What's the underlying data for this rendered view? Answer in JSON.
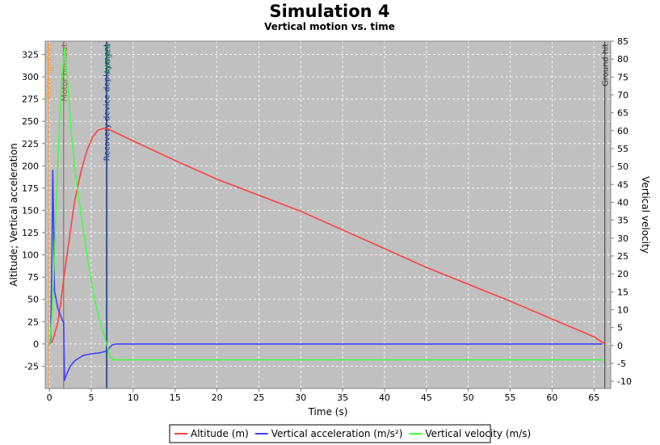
{
  "chart_data": {
    "type": "line",
    "title": "Simulation 4",
    "subtitle": "Vertical motion vs. time",
    "xlabel": "Time (s)",
    "ylabel_left": "Altitude; Vertical acceleration",
    "ylabel_right": "Vertical velocity",
    "xlim": [
      -0.5,
      67
    ],
    "ylim_left": [
      -50,
      340
    ],
    "ylim_right": [
      -12,
      85
    ],
    "x_ticks": [
      0,
      5,
      10,
      15,
      20,
      25,
      30,
      35,
      40,
      45,
      50,
      55,
      60,
      65
    ],
    "y_left_ticks": [
      -25,
      0,
      25,
      50,
      75,
      100,
      125,
      150,
      175,
      200,
      225,
      250,
      275,
      300,
      325
    ],
    "y_right_ticks": [
      -10,
      -5,
      0,
      5,
      10,
      15,
      20,
      25,
      30,
      35,
      40,
      45,
      50,
      55,
      60,
      65,
      70,
      75,
      80,
      85
    ],
    "grid": true,
    "legend_position": "bottom",
    "background_color": "#c0c0c0",
    "series": [
      {
        "name": "Altitude (m)",
        "color": "#ff4040",
        "axis": "left",
        "x": [
          0,
          0.3,
          0.6,
          1.0,
          1.4,
          1.8,
          2.4,
          3.0,
          3.8,
          4.5,
          5.2,
          5.8,
          6.4,
          6.9,
          8,
          10,
          15,
          20,
          25,
          30,
          35,
          40,
          45,
          50,
          55,
          60,
          65,
          66.3
        ],
        "y": [
          0,
          2,
          10,
          25,
          50,
          80,
          120,
          160,
          195,
          218,
          233,
          240,
          242,
          242,
          237,
          228,
          206,
          185,
          167,
          149,
          128,
          107,
          86,
          67,
          48,
          28,
          8,
          0
        ]
      },
      {
        "name": "Vertical acceleration (m/s²)",
        "color": "#4040ff",
        "axis": "left",
        "x": [
          0,
          0.15,
          0.3,
          0.4,
          0.5,
          0.6,
          0.8,
          1.0,
          1.2,
          1.4,
          1.5,
          1.6,
          1.7,
          1.8,
          2.0,
          2.5,
          3.0,
          3.5,
          4.0,
          5.0,
          6.0,
          6.8,
          7.1,
          7.5,
          8.0,
          9,
          10,
          20,
          30,
          40,
          50,
          60,
          66
        ],
        "y": [
          0,
          5,
          100,
          195,
          140,
          60,
          50,
          40,
          35,
          30,
          28,
          25,
          25,
          -41,
          -35,
          -25,
          -19,
          -16,
          -13,
          -11,
          -10,
          -8,
          -5,
          -1,
          0,
          0,
          0,
          0,
          0,
          0,
          0,
          0,
          0
        ]
      },
      {
        "name": "Vertical velocity (m/s)",
        "color": "#40ff40",
        "axis": "right",
        "x": [
          0,
          0.3,
          0.6,
          0.9,
          1.2,
          1.5,
          1.8,
          2.2,
          2.6,
          3.0,
          3.5,
          4.0,
          4.5,
          5.0,
          5.5,
          6.0,
          6.5,
          6.9,
          7.2,
          7.6,
          8,
          10,
          20,
          30,
          40,
          50,
          60,
          66
        ],
        "y": [
          0,
          8,
          25,
          45,
          62,
          75,
          83,
          73,
          60,
          50,
          41,
          33,
          25,
          18,
          12,
          7,
          3,
          0,
          -3,
          -4,
          -4,
          -4,
          -4,
          -4,
          -4,
          -4,
          -4,
          -4
        ]
      }
    ],
    "events": [
      {
        "label": "Motor ignition",
        "x": -0.1,
        "color": "#ff9933"
      },
      {
        "label": "Motor burnout",
        "x": 1.7,
        "color": "#886644"
      },
      {
        "label": "Recovery device deployment",
        "x": 6.8,
        "color": "#2222aa"
      },
      {
        "label": "Apogee",
        "x": 6.9,
        "color": "#118844"
      },
      {
        "label": "Ground hit",
        "x": 66.3,
        "color": "#333333"
      }
    ]
  }
}
